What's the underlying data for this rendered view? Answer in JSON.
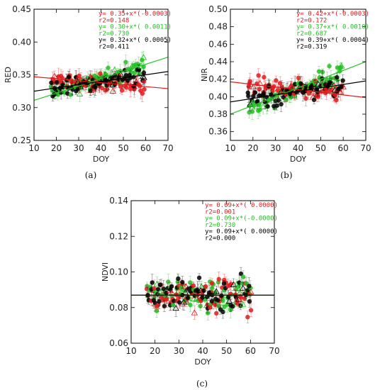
{
  "chart_data": [
    {
      "id": "a",
      "type": "scatter",
      "panel_label": "(a)",
      "xlabel": "DOY",
      "ylabel": "RED",
      "xlim": [
        10,
        70
      ],
      "ylim": [
        0.25,
        0.45
      ],
      "xticks": [
        "10",
        "20",
        "30",
        "40",
        "50",
        "60",
        "70"
      ],
      "yticks": [
        "0.25",
        "0.30",
        "0.35",
        "0.40",
        "0.45"
      ],
      "series": [
        {
          "color": "#e31a1c",
          "intercept": 0.35,
          "slope": -0.0003
        },
        {
          "color": "#22c022",
          "intercept": 0.3,
          "slope": 0.0011
        },
        {
          "color": "#000000",
          "intercept": 0.32,
          "slope": 0.0005
        }
      ],
      "annotations": [
        {
          "text": "y= 0.35+x*(-0.0003)",
          "color": "#e31a1c"
        },
        {
          "text": "r2=0.148",
          "color": "#e31a1c"
        },
        {
          "text": "y= 0.30+x*( 0.0011)",
          "color": "#22c022"
        },
        {
          "text": "r2=0.730",
          "color": "#22c022"
        },
        {
          "text": "y= 0.32+x*( 0.0005)",
          "color": "#000000"
        },
        {
          "text": "r2=0.411",
          "color": "#000000"
        }
      ],
      "x_range": [
        18,
        60
      ],
      "spread": 0.012
    },
    {
      "id": "b",
      "type": "scatter",
      "panel_label": "(b)",
      "xlabel": "DOY",
      "ylabel": "NIR",
      "xlim": [
        10,
        70
      ],
      "ylim": [
        0.35,
        0.5
      ],
      "xticks": [
        "10",
        "20",
        "30",
        "40",
        "50",
        "60",
        "70"
      ],
      "yticks": [
        "0.36",
        "0.38",
        "0.40",
        "0.42",
        "0.44",
        "0.46",
        "0.48",
        "0.50"
      ],
      "series": [
        {
          "color": "#e31a1c",
          "intercept": 0.42,
          "slope": -0.0003
        },
        {
          "color": "#22c022",
          "intercept": 0.37,
          "slope": 0.001
        },
        {
          "color": "#000000",
          "intercept": 0.39,
          "slope": 0.0004
        }
      ],
      "annotations": [
        {
          "text": "y= 0.42+x*(-0.0003)",
          "color": "#e31a1c"
        },
        {
          "text": "r2=0.172",
          "color": "#e31a1c"
        },
        {
          "text": "y= 0.37+x*( 0.0010)",
          "color": "#22c022"
        },
        {
          "text": "r2=0.687",
          "color": "#22c022"
        },
        {
          "text": "y= 0.39+x*( 0.0004)",
          "color": "#000000"
        },
        {
          "text": "r2=0.319",
          "color": "#000000"
        }
      ],
      "x_range": [
        18,
        60
      ],
      "spread": 0.01
    },
    {
      "id": "c",
      "type": "scatter",
      "panel_label": "(c)",
      "xlabel": "DOY",
      "ylabel": "NDVI",
      "xlim": [
        10,
        70
      ],
      "ylim": [
        0.06,
        0.14
      ],
      "xticks": [
        "10",
        "20",
        "30",
        "40",
        "50",
        "60",
        "70"
      ],
      "yticks": [
        "0.06",
        "0.08",
        "0.10",
        "0.12",
        "0.14"
      ],
      "series": [
        {
          "color": "#e31a1c",
          "intercept": 0.087,
          "slope": 0.0
        },
        {
          "color": "#22c022",
          "intercept": 0.087,
          "slope": 0.0
        },
        {
          "color": "#000000",
          "intercept": 0.087,
          "slope": 0.0
        }
      ],
      "annotations": [
        {
          "text": "y= 0.09+x*( 0.0000)",
          "color": "#e31a1c"
        },
        {
          "text": "r2=0.001",
          "color": "#e31a1c"
        },
        {
          "text": "y= 0.09+x*(-0.0000)",
          "color": "#22c022"
        },
        {
          "text": "r2=0.730",
          "color": "#22c022"
        },
        {
          "text": "y= 0.09+x*( 0.0000)",
          "color": "#000000"
        },
        {
          "text": "r2=0.000",
          "color": "#000000"
        }
      ],
      "x_range": [
        17,
        60
      ],
      "spread": 0.008
    }
  ]
}
